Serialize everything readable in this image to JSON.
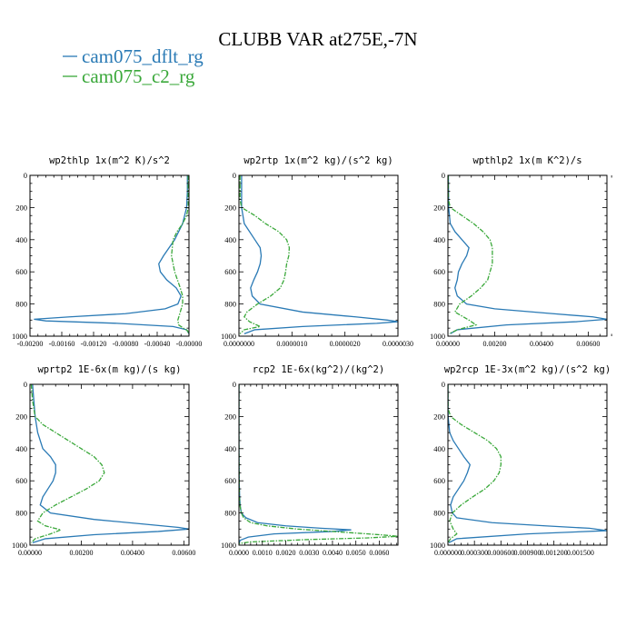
{
  "figure": {
    "title": "CLUBB VAR at275E,-7N",
    "legend": [
      {
        "label": "cam075_dflt_rg",
        "color": "#2a7ab5"
      },
      {
        "label": "cam075_c2_rg",
        "color": "#3aa83a"
      }
    ]
  },
  "colors": {
    "dflt": "#2a7ab5",
    "c2": "#3aa83a"
  },
  "chart_data": [
    {
      "type": "line",
      "title": "wp2thlp   1x(m^2 K)/s^2",
      "xlim": [
        -0.002,
        0
      ],
      "ylim": [
        0,
        1000
      ],
      "y_inverted": true,
      "xticks": [
        -0.002,
        -0.0016,
        -0.0012,
        -0.0008,
        -0.0004,
        0
      ],
      "xtick_labels": [
        "-0.00200",
        "-0.00160",
        "-0.00120",
        "-0.00080",
        "-0.00040",
        "-0.00000"
      ],
      "yticks": [
        0,
        200,
        400,
        600,
        800,
        1000
      ],
      "series": [
        {
          "name": "cam075_dflt_rg",
          "y": [
            0,
            100,
            200,
            300,
            400,
            500,
            550,
            600,
            650,
            700,
            750,
            800,
            830,
            860,
            880,
            895,
            905,
            920,
            940,
            960,
            985
          ],
          "x": [
            -2e-05,
            -2e-05,
            -3e-05,
            -8e-05,
            -0.00018,
            -0.00032,
            -0.00038,
            -0.00036,
            -0.00028,
            -0.00016,
            -0.0001,
            -0.00014,
            -0.0003,
            -0.0008,
            -0.0015,
            -0.00195,
            -0.0018,
            -0.0009,
            -0.0002,
            -3e-05,
            0
          ]
        },
        {
          "name": "cam075_c2_rg",
          "y": [
            0,
            100,
            200,
            250,
            300,
            350,
            400,
            500,
            600,
            700,
            750,
            800,
            850,
            900,
            930,
            950,
            965,
            985
          ],
          "x": [
            -1e-05,
            -1e-05,
            -1e-05,
            -3e-05,
            -8e-05,
            -0.00015,
            -0.0002,
            -0.00022,
            -0.00018,
            -0.00011,
            -8e-05,
            -8e-05,
            -0.00011,
            -0.00014,
            -0.00013,
            -7e-05,
            -2e-05,
            0
          ]
        }
      ]
    },
    {
      "type": "line",
      "title": "wp2rtp   1x(m^2 kg)/(s^2 kg)",
      "xlim": [
        0,
        3e-06
      ],
      "ylim": [
        0,
        1000
      ],
      "y_inverted": true,
      "xticks": [
        0,
        1e-06,
        2e-06,
        3e-06
      ],
      "xtick_labels": [
        "0.0000000",
        "0.0000010",
        "0.0000020",
        "0.0000030"
      ],
      "yticks": [
        0,
        200,
        400,
        600,
        800,
        1000
      ],
      "series": [
        {
          "name": "cam075_dflt_rg",
          "y": [
            0,
            200,
            300,
            400,
            450,
            500,
            550,
            600,
            650,
            700,
            750,
            800,
            850,
            880,
            900,
            910,
            920,
            940,
            960,
            985
          ],
          "x": [
            5e-08,
            5e-08,
            1e-07,
            3e-07,
            4e-07,
            4.2e-07,
            4e-07,
            3.5e-07,
            2.8e-07,
            2.2e-07,
            2.5e-07,
            4e-07,
            1.2e-06,
            2.2e-06,
            2.8e-06,
            3e-06,
            2.6e-06,
            1.2e-06,
            3e-07,
            1e-07
          ]
        },
        {
          "name": "cam075_c2_rg",
          "y": [
            0,
            150,
            200,
            250,
            300,
            350,
            400,
            450,
            500,
            550,
            600,
            650,
            700,
            750,
            800,
            850,
            880,
            910,
            940,
            960,
            985
          ],
          "x": [
            2e-08,
            2e-08,
            5e-08,
            3e-07,
            5e-07,
            7.5e-07,
            9e-07,
            9.5e-07,
            9.4e-07,
            9e-07,
            8.8e-07,
            8.5e-07,
            7.8e-07,
            6e-07,
            3.5e-07,
            1.5e-07,
            1e-07,
            2e-07,
            4e-07,
            1e-07,
            2e-08
          ]
        }
      ]
    },
    {
      "type": "line",
      "title": "wpthlp2   1x(m K^2)/s",
      "xlim": [
        0,
        0.0068
      ],
      "ylim": [
        0,
        1000
      ],
      "y_inverted": true,
      "xticks": [
        0,
        0.002,
        0.004,
        0.006
      ],
      "xtick_labels": [
        "0.00000",
        "0.00200",
        "0.00400",
        "0.00600"
      ],
      "yticks": [
        0,
        200,
        400,
        600,
        800,
        1000
      ],
      "series": [
        {
          "name": "cam075_dflt_rg",
          "y": [
            0,
            200,
            300,
            350,
            400,
            450,
            500,
            550,
            600,
            650,
            700,
            750,
            800,
            830,
            860,
            880,
            895,
            910,
            930,
            960,
            985
          ],
          "x": [
            2e-05,
            3e-05,
            0.0001,
            0.0003,
            0.0006,
            0.0009,
            0.0008,
            0.0006,
            0.00045,
            0.0004,
            0.0003,
            0.0004,
            0.0008,
            0.002,
            0.0045,
            0.0062,
            0.0068,
            0.0055,
            0.0025,
            0.0004,
            0.0001
          ]
        },
        {
          "name": "cam075_c2_rg",
          "y": [
            0,
            150,
            200,
            250,
            300,
            350,
            400,
            450,
            500,
            550,
            600,
            650,
            700,
            750,
            800,
            850,
            900,
            930,
            960,
            985
          ],
          "x": [
            1e-05,
            2e-05,
            0.0001,
            0.0006,
            0.0011,
            0.0015,
            0.0018,
            0.0019,
            0.0019,
            0.0019,
            0.0018,
            0.0017,
            0.0014,
            0.001,
            0.0005,
            0.0003,
            0.0009,
            0.0012,
            0.0004,
            5e-05
          ]
        }
      ]
    },
    {
      "type": "line",
      "title": "wprtp2   1E-6x(m kg)/(s kg)",
      "xlim": [
        0,
        0.0062
      ],
      "ylim": [
        0,
        1000
      ],
      "y_inverted": true,
      "xticks": [
        0,
        0.002,
        0.004,
        0.006
      ],
      "xtick_labels": [
        "0.00000",
        "0.00200",
        "0.00400",
        "0.00600"
      ],
      "yticks": [
        0,
        200,
        400,
        600,
        800,
        1000
      ],
      "series": [
        {
          "name": "cam075_dflt_rg",
          "y": [
            0,
            200,
            300,
            400,
            450,
            500,
            550,
            600,
            650,
            700,
            750,
            800,
            840,
            870,
            890,
            900,
            915,
            935,
            960,
            985
          ],
          "x": [
            0.0001,
            0.0002,
            0.0003,
            0.0005,
            0.0008,
            0.001,
            0.001,
            0.0009,
            0.0007,
            0.0005,
            0.0004,
            0.0008,
            0.0025,
            0.0045,
            0.0058,
            0.0062,
            0.005,
            0.0025,
            0.0006,
            0.0001
          ]
        },
        {
          "name": "cam075_c2_rg",
          "y": [
            0,
            100,
            200,
            250,
            300,
            350,
            400,
            450,
            500,
            550,
            600,
            650,
            700,
            750,
            800,
            850,
            880,
            905,
            930,
            960,
            985
          ],
          "x": [
            5e-05,
            0.0001,
            0.0002,
            0.0005,
            0.001,
            0.0015,
            0.002,
            0.0025,
            0.0028,
            0.0029,
            0.0027,
            0.0022,
            0.0016,
            0.001,
            0.0005,
            0.0003,
            0.0006,
            0.0012,
            0.0008,
            0.0002,
            5e-05
          ]
        }
      ]
    },
    {
      "type": "line",
      "title": "rcp2   1E-6x(kg^2)/(kg^2)",
      "xlim": [
        0,
        0.0068
      ],
      "ylim": [
        0,
        1000
      ],
      "y_inverted": true,
      "xticks": [
        0,
        0.001,
        0.002,
        0.003,
        0.004,
        0.005,
        0.006
      ],
      "xtick_labels": [
        "0.0000",
        "0.0010",
        "0.0020",
        "0.0030",
        "0.0040",
        "0.0050",
        "0.0060"
      ],
      "yticks": [
        0,
        200,
        400,
        600,
        800,
        1000
      ],
      "series": [
        {
          "name": "cam075_dflt_rg",
          "y": [
            0,
            400,
            600,
            700,
            750,
            800,
            830,
            860,
            880,
            895,
            905,
            915,
            930,
            950,
            970,
            990
          ],
          "x": [
            0,
            0,
            1e-05,
            3e-05,
            5e-05,
            0.0001,
            0.0003,
            0.0008,
            0.002,
            0.0035,
            0.0048,
            0.004,
            0.0015,
            0.0004,
            5e-05,
            0
          ]
        },
        {
          "name": "cam075_c2_rg",
          "y": [
            0,
            400,
            600,
            700,
            750,
            800,
            830,
            860,
            880,
            900,
            920,
            935,
            945,
            955,
            965,
            980,
            990
          ],
          "x": [
            0,
            0,
            1e-05,
            2e-05,
            4e-05,
            0.0001,
            0.0002,
            0.0005,
            0.0012,
            0.0025,
            0.0045,
            0.006,
            0.0068,
            0.0055,
            0.003,
            0.0005,
            0
          ]
        }
      ]
    },
    {
      "type": "line",
      "title": "wp2rcp   1E-3x(m^2 kg)/(s^2 kg)",
      "xlim": [
        0,
        0.0018
      ],
      "ylim": [
        0,
        1000
      ],
      "y_inverted": true,
      "xticks": [
        0,
        0.0003,
        0.0006,
        0.0009,
        0.0012,
        0.0015
      ],
      "xtick_labels": [
        "0.000000",
        "0.000300",
        "0.000600",
        "0.000900",
        "0.001200",
        "0.001500"
      ],
      "yticks": [
        0,
        200,
        400,
        600,
        800,
        1000
      ],
      "series": [
        {
          "name": "cam075_dflt_rg",
          "y": [
            0,
            200,
            300,
            350,
            400,
            450,
            500,
            550,
            600,
            650,
            700,
            750,
            800,
            830,
            860,
            880,
            895,
            910,
            930,
            960,
            985
          ],
          "x": [
            0,
            2e-06,
            2e-05,
            6e-05,
            0.00012,
            0.00018,
            0.00025,
            0.00022,
            0.00018,
            0.00012,
            6e-05,
            3e-05,
            5e-05,
            0.0001,
            0.0005,
            0.0011,
            0.0016,
            0.0018,
            0.0009,
            0.0001,
            1e-05
          ]
        },
        {
          "name": "cam075_c2_rg",
          "y": [
            0,
            150,
            200,
            250,
            300,
            350,
            400,
            450,
            500,
            550,
            600,
            650,
            700,
            750,
            800,
            850,
            900,
            930,
            960,
            985
          ],
          "x": [
            0,
            2e-06,
            3e-05,
            0.00015,
            0.0003,
            0.00045,
            0.00055,
            0.0006,
            0.0006,
            0.00058,
            0.00052,
            0.00042,
            0.00028,
            0.00015,
            5e-05,
            2e-05,
            6e-05,
            0.0001,
            3e-05,
            0
          ]
        }
      ]
    }
  ]
}
